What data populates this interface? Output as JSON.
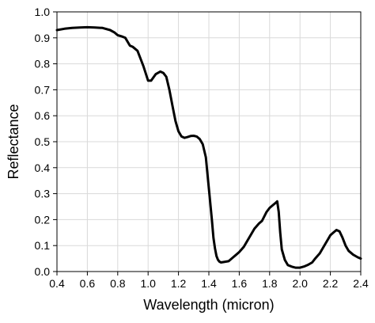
{
  "chart_data": {
    "type": "line",
    "title": "",
    "xlabel": "Wavelength (micron)",
    "ylabel": "Reflectance",
    "xlim": [
      0.4,
      2.4
    ],
    "ylim": [
      0.0,
      1.0
    ],
    "grid": true,
    "legend": "none",
    "x_ticks": [
      "0.4",
      "0.6",
      "0.8",
      "1.0",
      "1.2",
      "1.4",
      "1.6",
      "1.8",
      "2.0",
      "2.2",
      "2.4"
    ],
    "y_ticks": [
      "0.0",
      "0.1",
      "0.2",
      "0.3",
      "0.4",
      "0.5",
      "0.6",
      "0.7",
      "0.8",
      "0.9",
      "1.0"
    ],
    "colors": {
      "line": "#000000",
      "grid": "#d9d9d9",
      "axis": "#000000"
    },
    "series": [
      {
        "x": [
          0.4,
          0.45,
          0.5,
          0.55,
          0.6,
          0.65,
          0.7,
          0.75,
          0.78,
          0.8,
          0.83,
          0.85,
          0.88,
          0.9,
          0.93,
          0.95,
          0.97,
          1.0,
          1.02,
          1.05,
          1.08,
          1.1,
          1.12,
          1.14,
          1.16,
          1.18,
          1.2,
          1.22,
          1.24,
          1.26,
          1.28,
          1.3,
          1.32,
          1.34,
          1.36,
          1.38,
          1.4,
          1.42,
          1.43,
          1.44,
          1.45,
          1.46,
          1.47,
          1.48,
          1.5,
          1.53,
          1.56,
          1.58,
          1.6,
          1.63,
          1.66,
          1.68,
          1.7,
          1.73,
          1.75,
          1.78,
          1.8,
          1.82,
          1.84,
          1.85,
          1.86,
          1.87,
          1.88,
          1.9,
          1.92,
          1.95,
          1.97,
          2.0,
          2.03,
          2.05,
          2.08,
          2.1,
          2.13,
          2.15,
          2.18,
          2.2,
          2.22,
          2.24,
          2.26,
          2.28,
          2.3,
          2.32,
          2.35,
          2.38,
          2.4
        ],
        "y": [
          0.93,
          0.935,
          0.938,
          0.94,
          0.941,
          0.94,
          0.938,
          0.93,
          0.92,
          0.91,
          0.905,
          0.9,
          0.87,
          0.865,
          0.85,
          0.82,
          0.79,
          0.735,
          0.735,
          0.76,
          0.77,
          0.765,
          0.75,
          0.7,
          0.64,
          0.58,
          0.54,
          0.52,
          0.515,
          0.518,
          0.522,
          0.523,
          0.52,
          0.51,
          0.49,
          0.44,
          0.32,
          0.2,
          0.13,
          0.09,
          0.06,
          0.045,
          0.038,
          0.035,
          0.037,
          0.04,
          0.055,
          0.065,
          0.075,
          0.095,
          0.125,
          0.145,
          0.165,
          0.185,
          0.195,
          0.23,
          0.245,
          0.255,
          0.265,
          0.27,
          0.23,
          0.15,
          0.085,
          0.045,
          0.025,
          0.018,
          0.015,
          0.015,
          0.02,
          0.025,
          0.035,
          0.05,
          0.07,
          0.09,
          0.12,
          0.14,
          0.15,
          0.16,
          0.155,
          0.13,
          0.1,
          0.08,
          0.065,
          0.055,
          0.05
        ]
      }
    ]
  }
}
